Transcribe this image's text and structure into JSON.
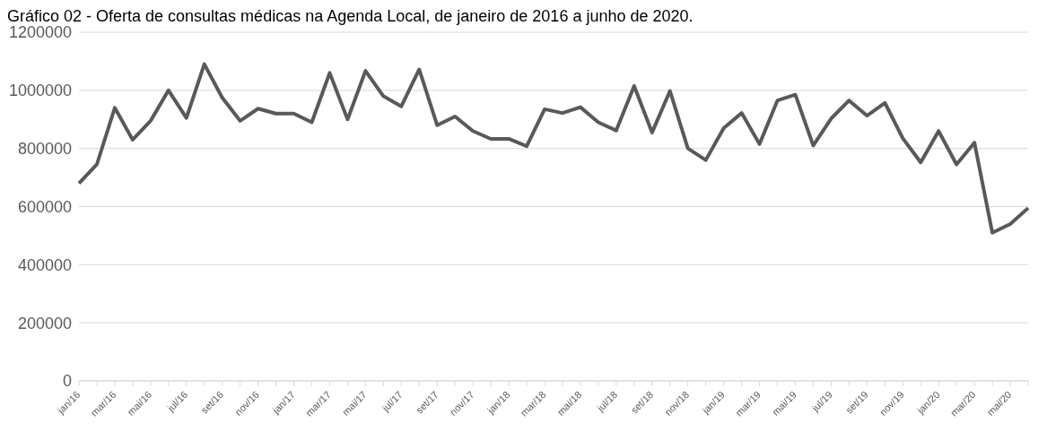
{
  "chart_data": {
    "type": "line",
    "title": "Gráfico 02 - Oferta de consultas médicas na Agenda Local, de janeiro de 2016 a junho de 2020.",
    "categories": [
      "jan/16",
      null,
      "mar/16",
      null,
      "mai/16",
      null,
      "jul/16",
      null,
      "set/16",
      null,
      "nov/16",
      null,
      "jan/17",
      null,
      "mar/17",
      null,
      "mai/17",
      null,
      "jul/17",
      null,
      "set/17",
      null,
      "nov/17",
      null,
      "jan/18",
      null,
      "mar/18",
      null,
      "mai/18",
      null,
      "jul/18",
      null,
      "set/18",
      null,
      "nov/18",
      null,
      "jan/19",
      null,
      "mar/19",
      null,
      "mai/19",
      null,
      "jul/19",
      null,
      "set/19",
      null,
      "nov/19",
      null,
      "jan/20",
      null,
      "mar/20",
      null,
      "mai/20",
      null
    ],
    "series": [
      {
        "color": "#595959",
        "values": [
          680000,
          745000,
          940000,
          830000,
          895000,
          1000000,
          905000,
          1090000,
          975000,
          895000,
          937000,
          920000,
          920000,
          890000,
          1060000,
          900000,
          1067000,
          980000,
          945000,
          1072000,
          880000,
          910000,
          860000,
          833000,
          833000,
          808000,
          935000,
          922000,
          942000,
          890000,
          862000,
          1015000,
          855000,
          998000,
          800000,
          760000,
          870000,
          922000,
          815000,
          965000,
          985000,
          810000,
          903000,
          965000,
          913000,
          957000,
          835000,
          752000,
          860000,
          745000,
          820000,
          510000,
          540000,
          595000
        ]
      }
    ],
    "ylim": [
      0,
      1200000
    ],
    "yticks": [
      0,
      200000,
      400000,
      600000,
      800000,
      1000000,
      1200000
    ],
    "grid": "y",
    "marker": "none",
    "line_style": "solid",
    "legend": false
  }
}
